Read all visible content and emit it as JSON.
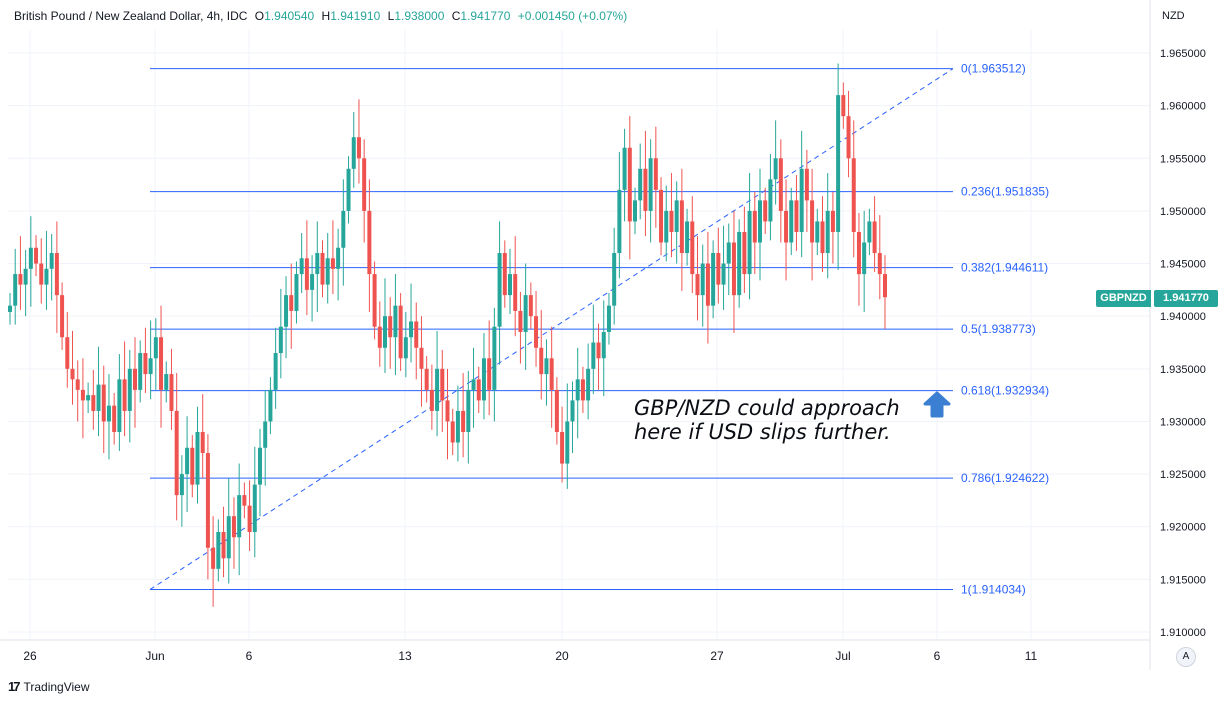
{
  "header": {
    "title": "British Pound / New Zealand Dollar, 4h, IDC",
    "open_label": "O",
    "open": "1.940540",
    "high_label": "H",
    "high": "1.941910",
    "low_label": "L",
    "low": "1.938000",
    "close_label": "C",
    "close": "1.941770",
    "change": "+0.001450 (+0.07%)"
  },
  "axis": {
    "currency": "NZD"
  },
  "price_tag": {
    "symbol": "GBPNZD",
    "price": "1.941770"
  },
  "annotation": {
    "line1": "GBP/NZD could approach",
    "line2": "here if USD slips further."
  },
  "footer": {
    "brand": "TradingView",
    "auto_button": "A"
  },
  "colors": {
    "up": "#26a69a",
    "down": "#ef5350",
    "fib": "#2962ff",
    "grid": "#f0f3fa",
    "arrow": "#3a7fd1"
  },
  "chart_data": {
    "type": "candlestick",
    "title": "British Pound / New Zealand Dollar, 4h, IDC",
    "ylabel": "NZD",
    "ylim": [
      1.9085,
      1.9685
    ],
    "y_ticks": [
      "1.965000",
      "1.960000",
      "1.955000",
      "1.950000",
      "1.945000",
      "1.940000",
      "1.935000",
      "1.930000",
      "1.925000",
      "1.920000",
      "1.915000",
      "1.910000"
    ],
    "x_ticks": [
      "26",
      "Jun",
      "6",
      "13",
      "20",
      "27",
      "Jul",
      "6",
      "11"
    ],
    "grid": true,
    "fibonacci": [
      {
        "label": "0(1.963512)",
        "ratio": 0,
        "price": 1.963512
      },
      {
        "label": "0.236(1.951835)",
        "ratio": 0.236,
        "price": 1.951835
      },
      {
        "label": "0.382(1.944611)",
        "ratio": 0.382,
        "price": 1.944611
      },
      {
        "label": "0.5(1.938773)",
        "ratio": 0.5,
        "price": 1.938773
      },
      {
        "label": "0.618(1.932934)",
        "ratio": 0.618,
        "price": 1.932934
      },
      {
        "label": "0.786(1.924622)",
        "ratio": 0.786,
        "price": 1.924622
      },
      {
        "label": "1(1.914034)",
        "ratio": 1,
        "price": 1.914034
      }
    ],
    "trend_line": {
      "from_price": 1.914034,
      "to_price": 1.963512
    },
    "closes": [
      1.941,
      1.944,
      1.943,
      1.9445,
      1.9465,
      1.945,
      1.943,
      1.9445,
      1.946,
      1.942,
      1.938,
      1.935,
      1.934,
      1.933,
      1.932,
      1.9325,
      1.931,
      1.9335,
      1.93,
      1.9315,
      1.929,
      1.934,
      1.931,
      1.935,
      1.933,
      1.9365,
      1.9345,
      1.936,
      1.938,
      1.933,
      1.9345,
      1.931,
      1.923,
      1.925,
      1.9275,
      1.924,
      1.929,
      1.927,
      1.918,
      1.916,
      1.9195,
      1.917,
      1.921,
      1.919,
      1.923,
      1.922,
      1.9195,
      1.924,
      1.9275,
      1.93,
      1.933,
      1.9365,
      1.939,
      1.942,
      1.9405,
      1.944,
      1.9455,
      1.9425,
      1.944,
      1.946,
      1.943,
      1.9455,
      1.9445,
      1.9465,
      1.95,
      1.954,
      1.957,
      1.955,
      1.95,
      1.944,
      1.939,
      1.937,
      1.94,
      1.938,
      1.941,
      1.936,
      1.938,
      1.9395,
      1.937,
      1.935,
      1.933,
      1.931,
      1.935,
      1.932,
      1.93,
      1.928,
      1.931,
      1.929,
      1.933,
      1.934,
      1.932,
      1.936,
      1.933,
      1.939,
      1.946,
      1.942,
      1.944,
      1.9405,
      1.9385,
      1.942,
      1.94,
      1.937,
      1.9345,
      1.936,
      1.933,
      1.929,
      1.926,
      1.93,
      1.932,
      1.934,
      1.932,
      1.935,
      1.9375,
      1.936,
      1.9385,
      1.941,
      1.946,
      1.952,
      1.956,
      1.949,
      1.951,
      1.954,
      1.95,
      1.955,
      1.952,
      1.947,
      1.95,
      1.948,
      1.951,
      1.946,
      1.949,
      1.944,
      1.942,
      1.945,
      1.941,
      1.946,
      1.943,
      1.945,
      1.947,
      1.942,
      1.948,
      1.944,
      1.95,
      1.947,
      1.951,
      1.949,
      1.953,
      1.955,
      1.95,
      1.947,
      1.951,
      1.948,
      1.954,
      1.951,
      1.947,
      1.949,
      1.946,
      1.95,
      1.948,
      1.961,
      1.959,
      1.955,
      1.948,
      1.944,
      1.947,
      1.949,
      1.946,
      1.944,
      1.9418
    ]
  }
}
